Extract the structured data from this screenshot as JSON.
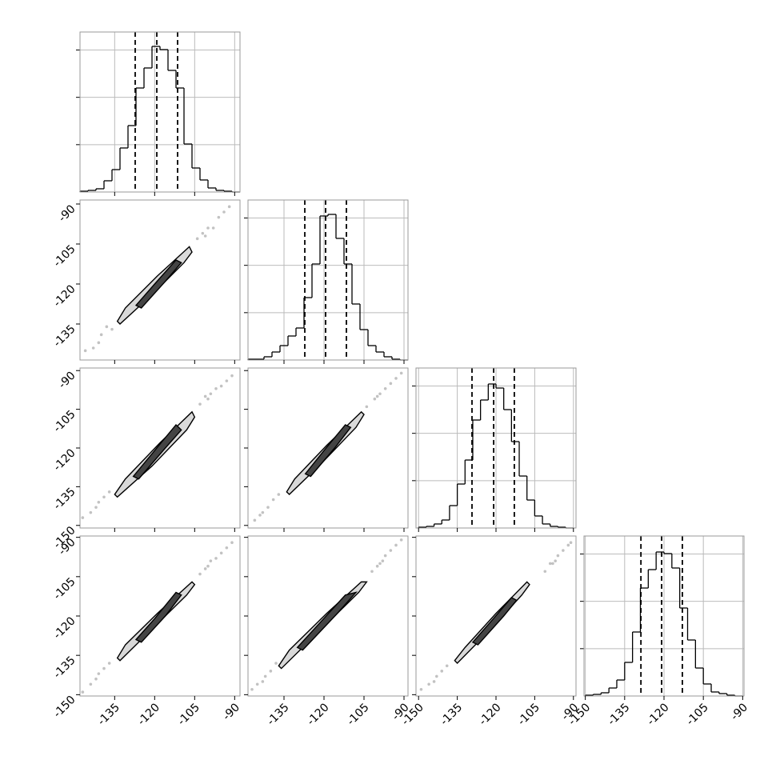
{
  "chart_data": {
    "type": "corner",
    "grid": true,
    "variables": [
      {
        "lim": [
          -148,
          -88
        ],
        "ticks": [
          -135,
          -120,
          -105,
          -90
        ],
        "hist": {
          "bins": [
            -148,
            -145,
            -142,
            -139,
            -136,
            -133,
            -130,
            -127,
            -124,
            -121,
            -118,
            -115,
            -112,
            -109,
            -106,
            -103,
            -100,
            -97,
            -94,
            -91,
            -88
          ],
          "counts": [
            17,
            34,
            68,
            237,
            473,
            930,
            1403,
            2197,
            2620,
            3076,
            3008,
            2569,
            2197,
            1014,
            507,
            254,
            85,
            34,
            17,
            0
          ],
          "quantiles": [
            -127.3,
            -119.2,
            -111.4
          ],
          "ylim": [
            0,
            3380
          ],
          "yticks": [
            1000,
            2000,
            3000
          ]
        }
      },
      {
        "lim": [
          -148.5,
          -88.5
        ],
        "ticks": [
          -135,
          -120,
          -105,
          -90
        ],
        "hist": {
          "bins": [
            -148.5,
            -145.5,
            -142.5,
            -139.5,
            -136.5,
            -133.5,
            -130.5,
            -127.5,
            -124.5,
            -121.5,
            -118.5,
            -115.5,
            -112.5,
            -109.5,
            -106.5,
            -103.5,
            -100.5,
            -97.5,
            -94.5,
            -91.5,
            -88.5
          ],
          "counts": [
            17,
            17,
            68,
            169,
            304,
            507,
            676,
            1318,
            2028,
            3042,
            3076,
            2569,
            2028,
            1183,
            642,
            304,
            169,
            68,
            17,
            0
          ],
          "quantiles": [
            -127.2,
            -119.4,
            -111.6
          ],
          "ylim": [
            0,
            3380
          ],
          "yticks": [
            1000,
            2000,
            3000
          ]
        }
      },
      {
        "lim": [
          -151,
          -89
        ],
        "ticks": [
          -150,
          -135,
          -120,
          -105,
          -90
        ],
        "hist": {
          "bins": [
            -150,
            -147,
            -144,
            -141,
            -138,
            -135,
            -132,
            -129,
            -126,
            -123,
            -120,
            -117,
            -114,
            -111,
            -108,
            -105,
            -102,
            -99,
            -96,
            -93,
            -90
          ],
          "counts": [
            17,
            34,
            85,
            169,
            473,
            929,
            1436,
            2281,
            2704,
            3042,
            2957,
            2501,
            1825,
            1098,
            591,
            254,
            85,
            34,
            17,
            0
          ],
          "quantiles": [
            -129.3,
            -120.9,
            -112.9
          ],
          "ylim": [
            0,
            3380
          ],
          "yticks": [
            1000,
            2000,
            3000
          ]
        }
      },
      {
        "lim": [
          -150.5,
          -89.5
        ],
        "ticks": [
          -150,
          -135,
          -120,
          -105,
          -90
        ],
        "hist": {
          "bins": [
            -150,
            -147,
            -144,
            -141,
            -138,
            -135,
            -132,
            -129,
            -126,
            -123,
            -120,
            -117,
            -114,
            -111,
            -108,
            -105,
            -102,
            -99,
            -96,
            -93,
            -90
          ],
          "counts": [
            17,
            34,
            68,
            169,
            338,
            710,
            1352,
            2281,
            2670,
            3042,
            3008,
            2704,
            1859,
            1183,
            591,
            254,
            85,
            51,
            17,
            0
          ],
          "quantiles": [
            -128.8,
            -120.9,
            -113.0
          ],
          "ylim": [
            0,
            3380
          ],
          "yticks": [
            1000,
            2000,
            3000
          ]
        }
      }
    ],
    "pairs": [
      {
        "points": {
          "x": [
            -146,
            -143,
            -140,
            -138,
            -136,
            -141,
            -104,
            -102,
            -100,
            -98,
            -96,
            -94,
            -92,
            -101
          ],
          "y": [
            -145,
            -144,
            -139,
            -136,
            -137,
            -142,
            -103,
            -101,
            -99,
            -99,
            -95,
            -93,
            -91,
            -102
          ]
        },
        "contours": [
          {
            "x": [
              -134,
              -131,
              -119,
              -107,
              -106,
              -109,
              -121,
              -133
            ],
            "y": [
              -134,
              -129,
              -117,
              -106,
              -108,
              -112,
              -124,
              -135
            ]
          },
          {
            "x": [
              -127,
              -120,
              -112,
              -110,
              -116,
              -125
            ],
            "y": [
              -128,
              -120,
              -111,
              -112,
              -119,
              -129
            ]
          }
        ]
      },
      {
        "points": {
          "x": [
            -147,
            -144,
            -141,
            -139,
            -137,
            -142,
            -103,
            -101,
            -99,
            -97,
            -95,
            -93,
            -91,
            -100
          ],
          "y": [
            -147,
            -145,
            -141,
            -139,
            -137,
            -143,
            -103,
            -100,
            -99,
            -97,
            -96,
            -94,
            -92,
            -101
          ]
        },
        "contours": [
          {
            "x": [
              -135,
              -131,
              -118,
              -106,
              -105,
              -108,
              -121,
              -134
            ],
            "y": [
              -138,
              -132,
              -118,
              -106,
              -108,
              -113,
              -127,
              -139
            ]
          },
          {
            "x": [
              -128,
              -120,
              -112,
              -110,
              -116,
              -126
            ],
            "y": [
              -131,
              -121,
              -111,
              -113,
              -120,
              -132
            ]
          }
        ]
      },
      {
        "points": {
          "x": [
            -146,
            -143,
            -141,
            -139,
            -137,
            -144,
            -104,
            -101,
            -99,
            -97,
            -95,
            -93,
            -91,
            -100
          ],
          "y": [
            -148,
            -145,
            -143,
            -140,
            -138,
            -146,
            -104,
            -101,
            -99,
            -97,
            -95,
            -93,
            -91,
            -100
          ]
        },
        "contours": [
          {
            "x": [
              -134,
              -131,
              -119,
              -106,
              -105,
              -108,
              -121,
              -133
            ],
            "y": [
              -137,
              -132,
              -119,
              -106,
              -107,
              -112,
              -126,
              -138
            ]
          },
          {
            "x": [
              -127,
              -120,
              -112,
              -110,
              -116,
              -125
            ],
            "y": [
              -130,
              -121,
              -111,
              -112,
              -120,
              -131
            ]
          }
        ]
      },
      {
        "points": {
          "x": [
            -147,
            -144,
            -141,
            -139,
            -137,
            -142,
            -103,
            -101,
            -99,
            -97,
            -95,
            -93,
            -91,
            -100
          ],
          "y": [
            -149,
            -146,
            -142,
            -140,
            -138,
            -144,
            -104,
            -102,
            -99,
            -98,
            -96,
            -94,
            -92,
            -101
          ]
        },
        "contours": [
          {
            "x": [
              -134,
              -131,
              -119,
              -106,
              -105,
              -108,
              -121,
              -133
            ],
            "y": [
              -136,
              -131,
              -119,
              -107,
              -108,
              -112,
              -125,
              -137
            ]
          },
          {
            "x": [
              -127,
              -120,
              -112,
              -110,
              -116,
              -125
            ],
            "y": [
              -129,
              -121,
              -111,
              -112,
              -120,
              -130
            ]
          }
        ]
      },
      {
        "points": {
          "x": [
            -147,
            -145,
            -142,
            -140,
            -138,
            -143,
            -102,
            -100,
            -98,
            -97,
            -95,
            -93,
            -91,
            -99
          ],
          "y": [
            -148,
            -146,
            -143,
            -141,
            -138,
            -145,
            -103,
            -101,
            -99,
            -97,
            -95,
            -93,
            -91,
            -100
          ]
        },
        "contours": [
          {
            "x": [
              -137,
              -133,
              -119,
              -106,
              -104,
              -107,
              -122,
              -136
            ],
            "y": [
              -139,
              -133,
              -119,
              -107,
              -107,
              -111,
              -126,
              -140
            ]
          },
          {
            "x": [
              -130,
              -121,
              -112,
              -108,
              -115,
              -128
            ],
            "y": [
              -132,
              -122,
              -112,
              -111,
              -119,
              -133
            ]
          }
        ]
      },
      {
        "points": {
          "x": [
            -149,
            -146,
            -143,
            -141,
            -139,
            -144,
            -101,
            -99,
            -97,
            -96,
            -94,
            -92,
            -91,
            -98
          ],
          "y": [
            -148,
            -146,
            -143,
            -141,
            -139,
            -145,
            -103,
            -100,
            -99,
            -97,
            -95,
            -93,
            -92,
            -100
          ]
        },
        "contours": [
          {
            "x": [
              -136,
              -132,
              -120,
              -108,
              -107,
              -110,
              -123,
              -135
            ],
            "y": [
              -137,
              -132,
              -119,
              -107,
              -108,
              -112,
              -126,
              -138
            ]
          },
          {
            "x": [
              -129,
              -121,
              -114,
              -112,
              -117,
              -127
            ],
            "y": [
              -130,
              -121,
              -113,
              -114,
              -120,
              -131
            ]
          }
        ]
      }
    ]
  }
}
